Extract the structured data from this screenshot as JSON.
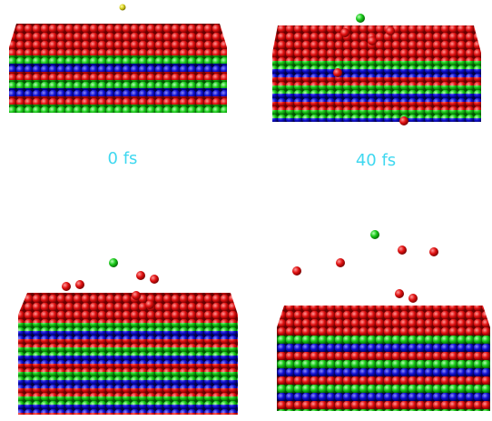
{
  "panels": [
    {
      "label": "0 fs"
    },
    {
      "label": "40 fs"
    }
  ]
}
